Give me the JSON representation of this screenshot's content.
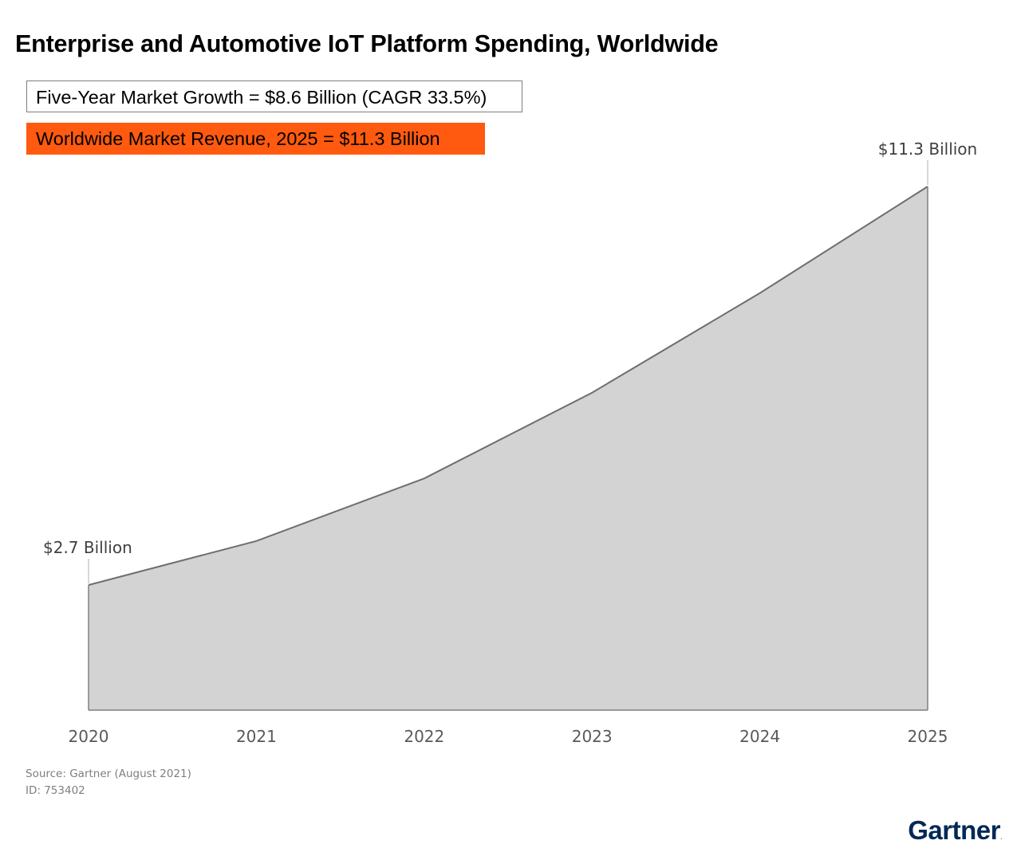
{
  "title": "Enterprise and Automotive IoT Platform Spending, Worldwide",
  "callouts": {
    "growth": "Five-Year Market Growth = $8.6 Billion (CAGR 33.5%)",
    "revenue": "Worldwide Market Revenue, 2025 = $11.3 Billion"
  },
  "colors": {
    "accent": "#ff5a0f",
    "area_fill": "#d3d3d3",
    "area_line": "#6e6e6e",
    "axis": "#808080",
    "logo": "#002856"
  },
  "chart_data": {
    "type": "area",
    "title": "Enterprise and Automotive IoT Platform Spending, Worldwide",
    "xlabel": "",
    "ylabel": "",
    "categories": [
      "2020",
      "2021",
      "2022",
      "2023",
      "2024",
      "2025"
    ],
    "series": [
      {
        "values": [
          2.7,
          3.65,
          5.0,
          6.85,
          9.0,
          11.3
        ]
      }
    ],
    "ylim": [
      0,
      11.3
    ],
    "grid": false,
    "data_labels": [
      {
        "category": "2020",
        "text": "$2.7 Billion"
      },
      {
        "category": "2025",
        "text": "$11.3 Billion"
      }
    ]
  },
  "footer": {
    "source": "Source: Gartner (August 2021)",
    "id": "ID: 753402"
  },
  "logo": {
    "text": "Gartner",
    "mark": "."
  }
}
